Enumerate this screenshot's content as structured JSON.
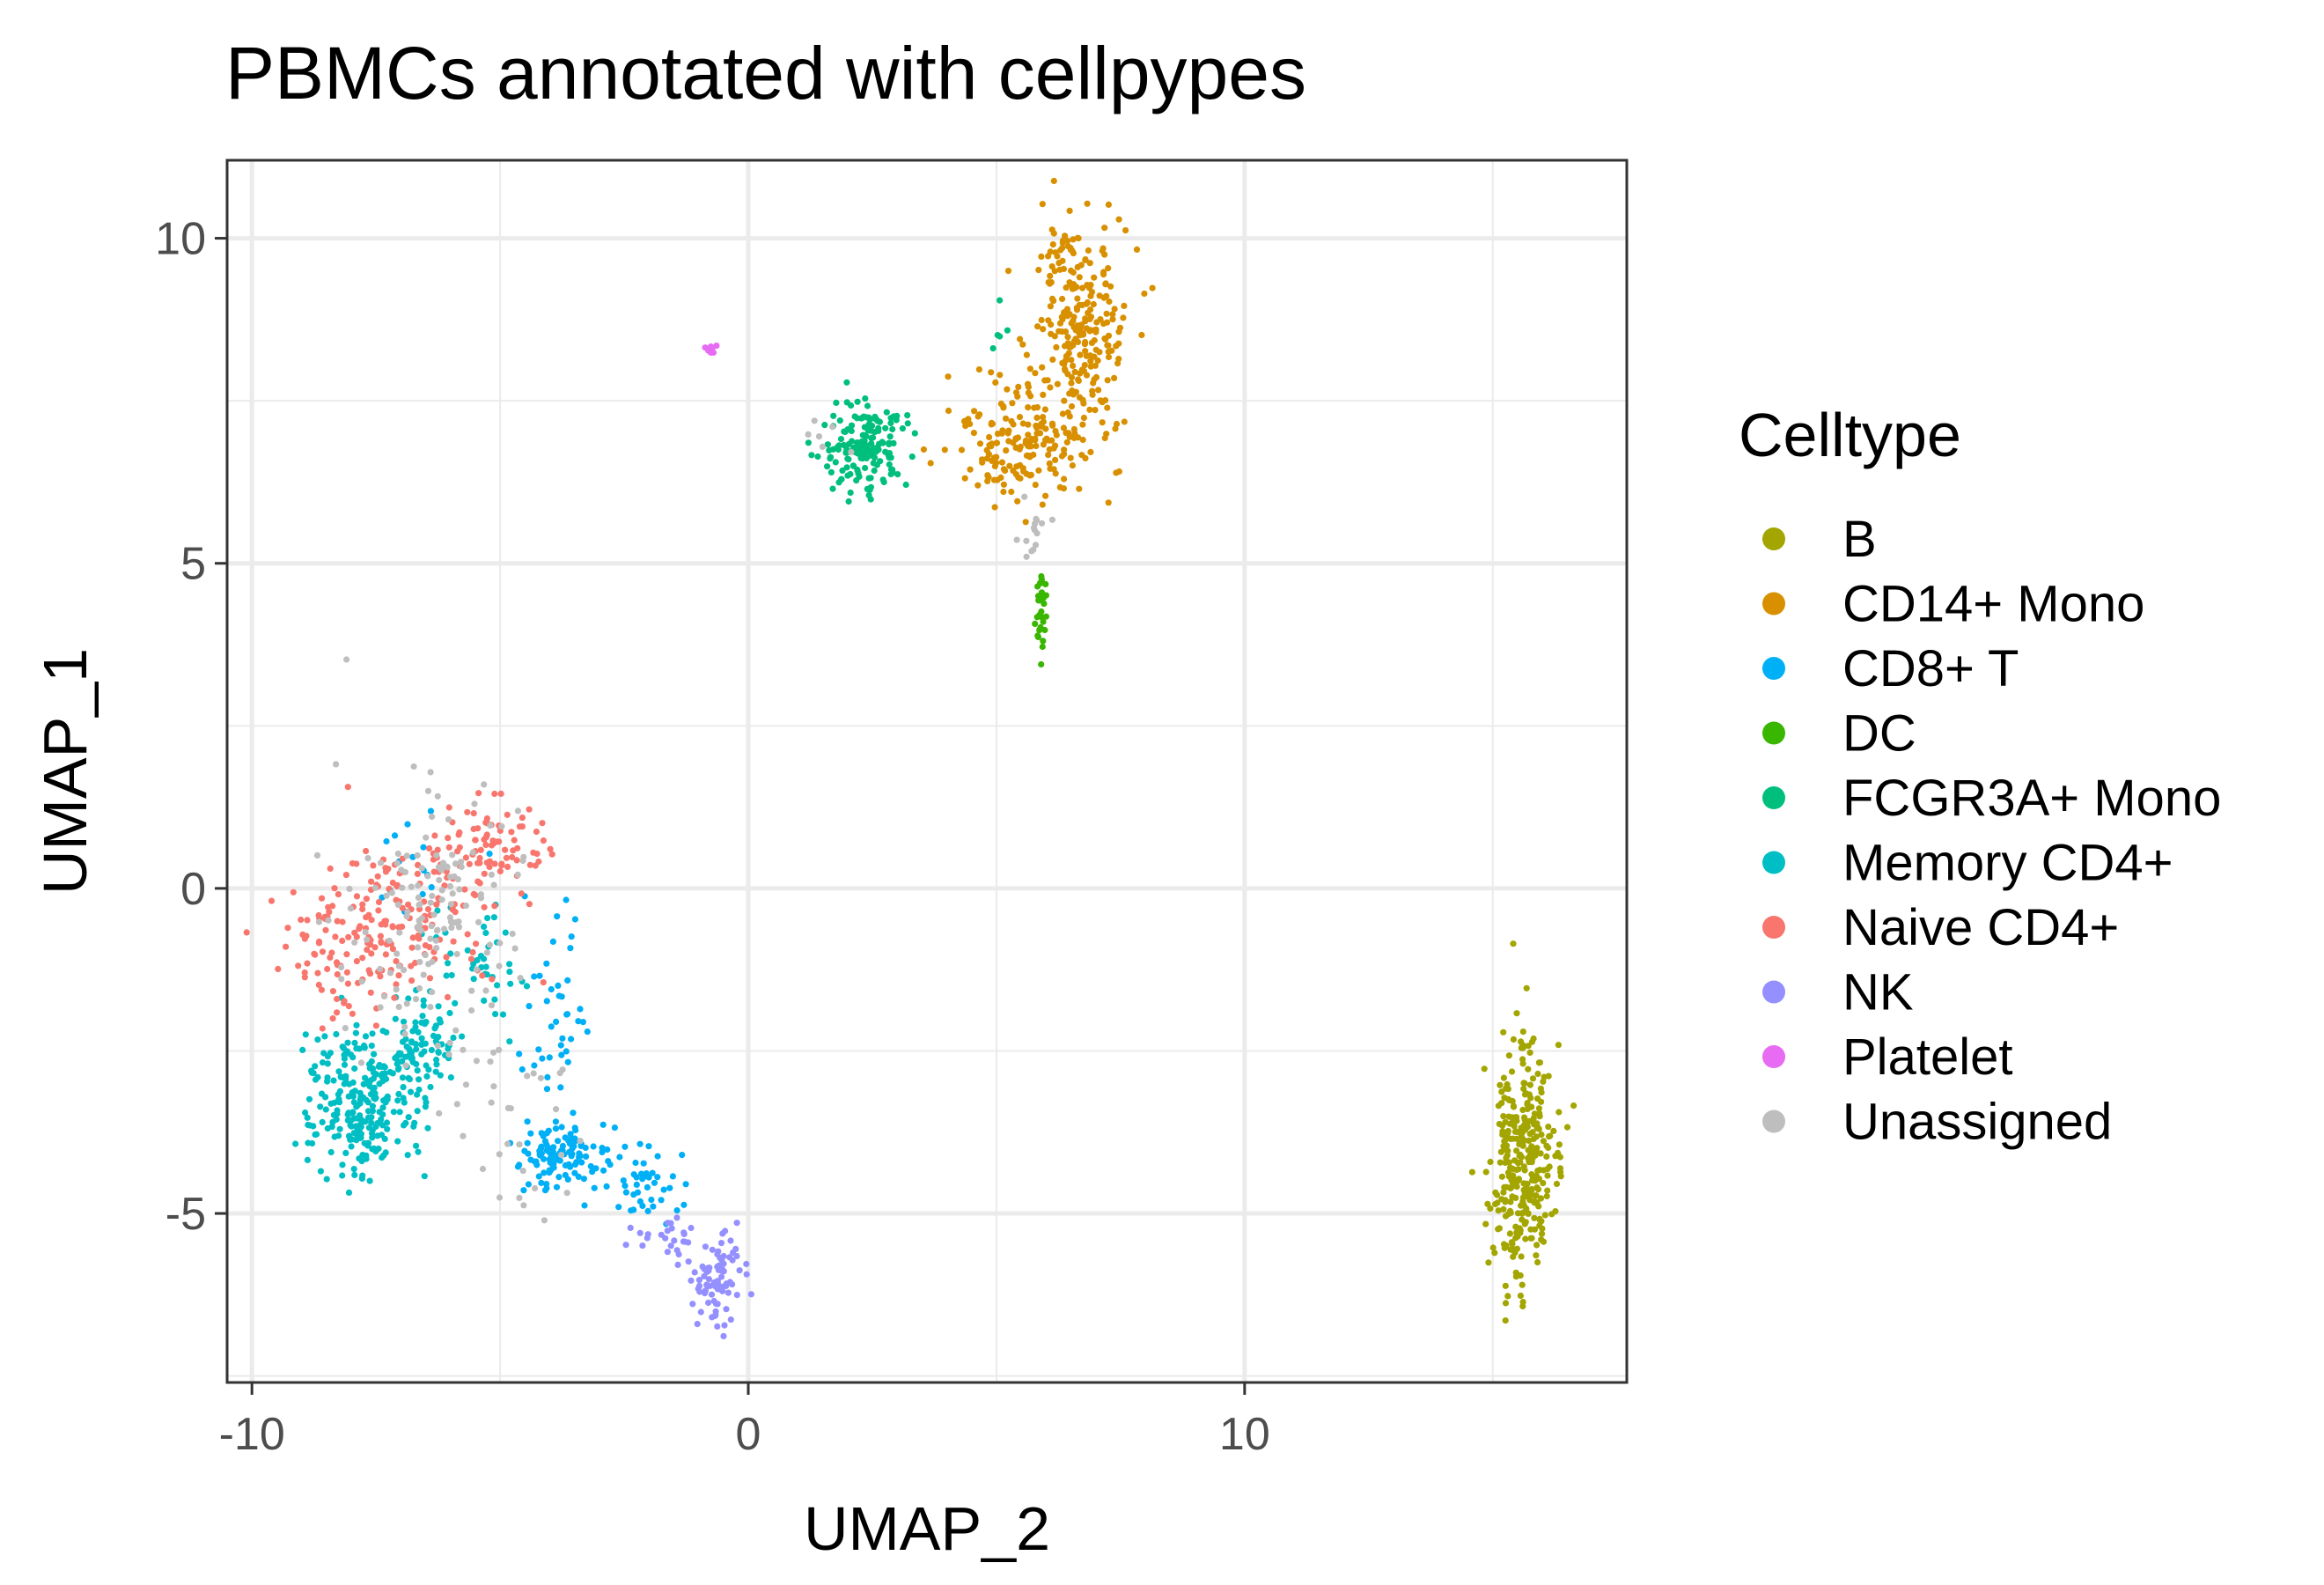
{
  "chart_data": {
    "type": "scatter",
    "title": "PBMCs annotated with cellpypes",
    "xlabel": "UMAP_2",
    "ylabel": "UMAP_1",
    "xlim": [
      -10.5,
      17.7
    ],
    "ylim": [
      -7.6,
      11.2
    ],
    "x_ticks": [
      -10,
      0,
      10
    ],
    "x_tick_labels": [
      "-10",
      "0",
      "10"
    ],
    "y_ticks": [
      -5,
      0,
      5,
      10
    ],
    "y_tick_labels": [
      "-5",
      "0",
      "5",
      "10"
    ],
    "grid": true,
    "legend_title": "Celltype",
    "legend_position": "right",
    "series": [
      {
        "name": "B",
        "color": "#A3A500",
        "clusters": [
          {
            "cx": 15.6,
            "cy": -4.3,
            "sx": 0.35,
            "sy": 0.95,
            "n": 330
          }
        ]
      },
      {
        "name": "CD14+ Mono",
        "color": "#D89000",
        "clusters": [
          {
            "cx": 6.7,
            "cy": 8.5,
            "sx": 0.45,
            "sy": 0.8,
            "n": 230
          },
          {
            "cx": 5.5,
            "cy": 6.8,
            "sx": 0.75,
            "sy": 0.45,
            "n": 180
          },
          {
            "cx": 6.3,
            "cy": 9.8,
            "sx": 0.2,
            "sy": 0.25,
            "n": 25
          }
        ]
      },
      {
        "name": "CD8+ T",
        "color": "#00B0F6",
        "clusters": [
          {
            "cx": -3.8,
            "cy": -4.1,
            "sx": 0.45,
            "sy": 0.3,
            "n": 110
          },
          {
            "cx": -2.1,
            "cy": -4.6,
            "sx": 0.35,
            "sy": 0.3,
            "n": 45
          },
          {
            "cx": -4.0,
            "cy": -2.0,
            "sx": 0.4,
            "sy": 0.7,
            "n": 40
          },
          {
            "cx": -6.8,
            "cy": 0.6,
            "sx": 0.6,
            "sy": 0.4,
            "n": 15
          }
        ]
      },
      {
        "name": "DC",
        "color": "#39B600",
        "clusters": [
          {
            "cx": 5.9,
            "cy": 4.3,
            "sx": 0.06,
            "sy": 0.3,
            "n": 30
          }
        ]
      },
      {
        "name": "FCGR3A+ Mono",
        "color": "#00BF7D",
        "clusters": [
          {
            "cx": 2.4,
            "cy": 6.8,
            "sx": 0.45,
            "sy": 0.33,
            "n": 170
          },
          {
            "cx": 5.1,
            "cy": 8.7,
            "sx": 0.1,
            "sy": 0.4,
            "n": 5
          }
        ]
      },
      {
        "name": "Memory CD4+",
        "color": "#00BFC4",
        "clusters": [
          {
            "cx": -7.8,
            "cy": -3.3,
            "sx": 0.55,
            "sy": 0.55,
            "n": 260
          },
          {
            "cx": -6.5,
            "cy": -2.3,
            "sx": 0.4,
            "sy": 0.4,
            "n": 80
          },
          {
            "cx": -5.3,
            "cy": -1.2,
            "sx": 0.45,
            "sy": 0.45,
            "n": 40
          }
        ]
      },
      {
        "name": "Naive CD4+",
        "color": "#F8766D",
        "clusters": [
          {
            "cx": -7.2,
            "cy": -0.6,
            "sx": 1.0,
            "sy": 0.6,
            "n": 170
          },
          {
            "cx": -5.2,
            "cy": 0.6,
            "sx": 0.6,
            "sy": 0.35,
            "n": 90
          },
          {
            "cx": -8.4,
            "cy": -1.2,
            "sx": 0.3,
            "sy": 0.5,
            "n": 30
          }
        ]
      },
      {
        "name": "NK",
        "color": "#9590FF",
        "clusters": [
          {
            "cx": -0.6,
            "cy": -6.1,
            "sx": 0.3,
            "sy": 0.35,
            "n": 80
          },
          {
            "cx": -1.5,
            "cy": -5.4,
            "sx": 0.35,
            "sy": 0.2,
            "n": 25
          }
        ]
      },
      {
        "name": "Platelet",
        "color": "#E76BF3",
        "clusters": [
          {
            "cx": -0.75,
            "cy": 8.3,
            "sx": 0.06,
            "sy": 0.06,
            "n": 8
          }
        ]
      },
      {
        "name": "Unassigned",
        "color": "#BEBEBE",
        "clusters": [
          {
            "cx": -6.5,
            "cy": -0.2,
            "sx": 1.0,
            "sy": 1.0,
            "n": 140
          },
          {
            "cx": -5.0,
            "cy": -3.5,
            "sx": 1.0,
            "sy": 0.9,
            "n": 35
          },
          {
            "cx": 5.7,
            "cy": 5.5,
            "sx": 0.15,
            "sy": 0.2,
            "n": 15
          },
          {
            "cx": 1.6,
            "cy": 7.0,
            "sx": 0.2,
            "sy": 0.15,
            "n": 6
          }
        ]
      }
    ]
  }
}
